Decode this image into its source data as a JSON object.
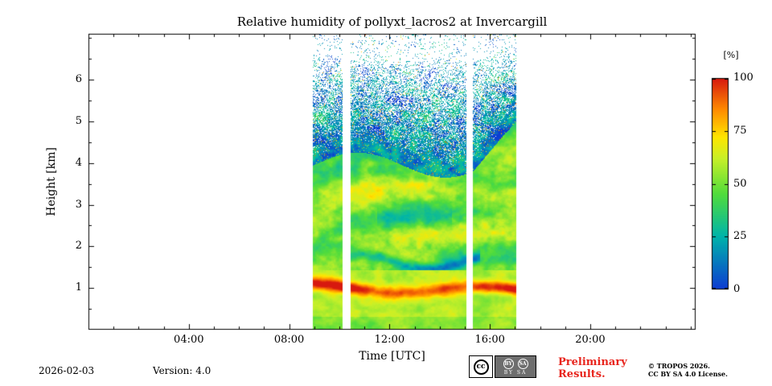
{
  "title": "Relative humidity of pollyxt_lacros2 at Invercargill",
  "footer": {
    "date": "2026-02-03",
    "version": "Version: 4.0",
    "preliminary_line1": "Preliminary",
    "preliminary_line2": "Results.",
    "copyright_line1": "© TROPOS 2026.",
    "copyright_line2": "CC BY SA 4.0 License.",
    "cc": {
      "cc_glyph": "cc",
      "by_glyph": "BY",
      "sa_glyph": "SA",
      "caption": "BY SA"
    }
  },
  "chart_data": {
    "type": "heatmap",
    "title": "Relative humidity of pollyxt_lacros2 at Invercargill",
    "xlabel": "Time [UTC]",
    "ylabel": "Height [km]",
    "colorbar_label": "[%]",
    "value_range": [
      0,
      100
    ],
    "colorbar_ticks": [
      0,
      25,
      50,
      75,
      100
    ],
    "x_ticks": [
      "04:00",
      "08:00",
      "12:00",
      "16:00",
      "20:00"
    ],
    "x_tick_hours": [
      4,
      8,
      12,
      16,
      20
    ],
    "x_minor_interval_hours": 1,
    "xlim_hours": [
      0,
      24.2
    ],
    "y_ticks": [
      1,
      2,
      3,
      4,
      5,
      6
    ],
    "y_minor_interval_km": 0.5,
    "ylim_km": [
      0,
      7.1
    ],
    "grid": false,
    "legend_position": "colorbar-right",
    "data_time_range_hours": [
      8.95,
      17.05
    ],
    "data_gaps_hours": [
      [
        10.12,
        10.45
      ],
      [
        15.08,
        15.33
      ]
    ],
    "colormap_stops": [
      {
        "t": 0.0,
        "color": "#0d3cd2"
      },
      {
        "t": 0.25,
        "color": "#00b4aa"
      },
      {
        "t": 0.45,
        "color": "#50dc3c"
      },
      {
        "t": 0.62,
        "color": "#c8f028"
      },
      {
        "t": 0.72,
        "color": "#ffe600"
      },
      {
        "t": 0.85,
        "color": "#ff8c00"
      },
      {
        "t": 1.0,
        "color": "#d7190f"
      }
    ],
    "features": [
      "Measurement data only between about 09:00 and 17:00 UTC; rest of day blank",
      "Two full-height white data gaps near 10:10-10:30 and 15:05-15:20 UTC",
      "Very moist band (RH 85-100%, orange/red) around 0.9-1.3 km through the whole period, strongest before 11:00 and after 15:30",
      "Moderately moist layered structure (RH 40-65%, green/yellow) between 1.3 and 4 km with wavy moist layers near 2.3 and 3.3 km",
      "Drier streak (RH 20-35%, blue) near 1.5-1.8 km between roughly 10:30 and 15:30",
      "Dry noisy free troposphere (RH 0-30%, blue speckle with scattered green/orange dots) above ~4 km, data dropout increasing with height up to ~7 km"
    ],
    "render_profile": {
      "surface_layer_rh": 58,
      "moist_band_center_km": 1.02,
      "moist_band_peak_rh": 100,
      "mid_layer_rh": 47,
      "dry_streak_center_km": 1.62,
      "dry_streak_time_range": [
        10.2,
        15.6
      ],
      "moist_layer_3km_center": 3.3,
      "moist_layer_2km_center": 2.25,
      "cloud_top_base_km": 3.95,
      "upper_region_rh": 17,
      "upper_noise_amplitude": 26
    }
  }
}
